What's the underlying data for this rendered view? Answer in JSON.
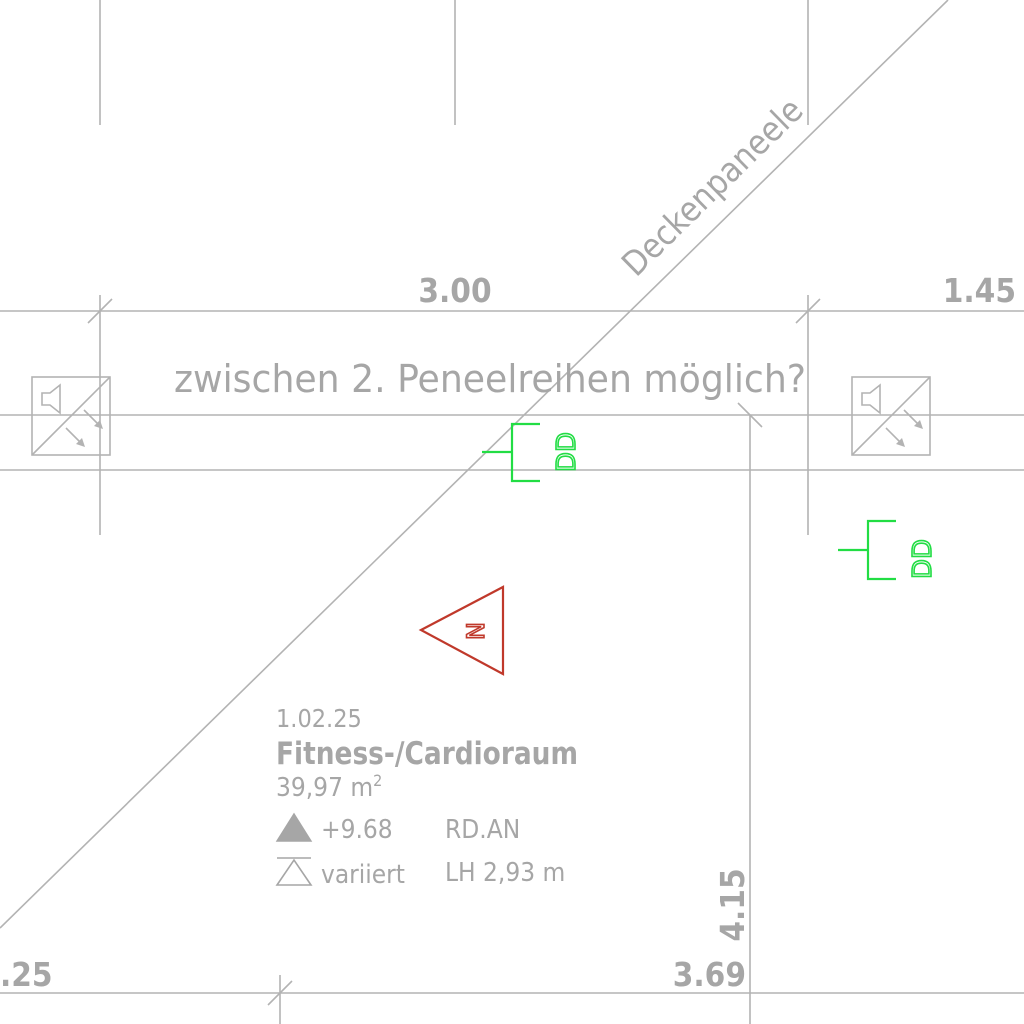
{
  "dimensions": {
    "top_left": "3.00",
    "top_right": "1.45",
    "bottom_left": ".25",
    "bottom_mid": "3.69",
    "vertical": "4.15"
  },
  "annotations": {
    "diagonal": "Deckenpaneele",
    "note": "zwischen 2. Peneelreihen möglich?"
  },
  "symbols": {
    "dd_label": "DD",
    "north_label": "N"
  },
  "room": {
    "number": "1.02.25",
    "name": "Fitness-/Cardioraum",
    "area": "39,97 m",
    "area_sup": "2",
    "level": "+9.68",
    "code": "RD.AN",
    "ceiling_level": "variiert",
    "clear_height": "LH 2,93 m"
  },
  "colors": {
    "line": "#b3b3b3",
    "text": "#a6a6a6",
    "green": "#22dd44",
    "red": "#c0392b"
  }
}
